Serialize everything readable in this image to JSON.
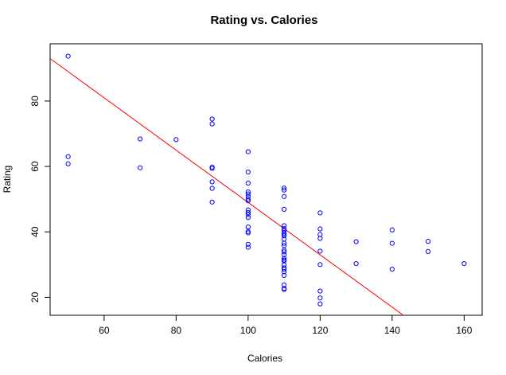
{
  "chart_data": {
    "type": "scatter",
    "title": "Rating vs. Calories",
    "xlabel": "Calories",
    "ylabel": "Rating",
    "xlim": [
      45,
      165
    ],
    "ylim": [
      14.5,
      97.5
    ],
    "xticks": [
      60,
      80,
      100,
      120,
      140,
      160
    ],
    "yticks": [
      20,
      40,
      60,
      80
    ],
    "grid": false,
    "legend": "none",
    "points": [
      [
        50,
        93.7
      ],
      [
        50,
        63.0
      ],
      [
        50,
        60.8
      ],
      [
        70,
        68.4
      ],
      [
        70,
        59.6
      ],
      [
        80,
        68.2
      ],
      [
        90,
        74.5
      ],
      [
        90,
        73.0
      ],
      [
        90,
        59.8
      ],
      [
        90,
        59.4
      ],
      [
        90,
        55.3
      ],
      [
        90,
        53.3
      ],
      [
        90,
        49.1
      ],
      [
        100,
        64.5
      ],
      [
        100,
        58.3
      ],
      [
        100,
        54.9
      ],
      [
        100,
        52.2
      ],
      [
        100,
        51.6
      ],
      [
        100,
        50.8
      ],
      [
        100,
        50.0
      ],
      [
        100,
        49.5
      ],
      [
        100,
        46.7
      ],
      [
        100,
        45.9
      ],
      [
        100,
        45.3
      ],
      [
        100,
        44.4
      ],
      [
        100,
        41.5
      ],
      [
        100,
        40.1
      ],
      [
        100,
        39.7
      ],
      [
        100,
        36.2
      ],
      [
        100,
        35.3
      ],
      [
        110,
        53.4
      ],
      [
        110,
        52.8
      ],
      [
        110,
        50.8
      ],
      [
        110,
        46.9
      ],
      [
        110,
        41.9
      ],
      [
        110,
        41.0
      ],
      [
        110,
        40.4
      ],
      [
        110,
        39.6
      ],
      [
        110,
        39.1
      ],
      [
        110,
        38.8
      ],
      [
        110,
        37.8
      ],
      [
        110,
        36.5
      ],
      [
        110,
        35.8
      ],
      [
        110,
        34.4
      ],
      [
        110,
        33.9
      ],
      [
        110,
        33.0
      ],
      [
        110,
        31.9
      ],
      [
        110,
        31.4
      ],
      [
        110,
        31.1
      ],
      [
        110,
        29.9
      ],
      [
        110,
        29.0
      ],
      [
        110,
        28.6
      ],
      [
        110,
        27.8
      ],
      [
        110,
        26.7
      ],
      [
        110,
        23.8
      ],
      [
        110,
        22.7
      ],
      [
        110,
        22.4
      ],
      [
        120,
        45.8
      ],
      [
        120,
        40.9
      ],
      [
        120,
        39.2
      ],
      [
        120,
        38.0
      ],
      [
        120,
        34.1
      ],
      [
        120,
        30.0
      ],
      [
        120,
        21.9
      ],
      [
        120,
        19.8
      ],
      [
        120,
        18.0
      ],
      [
        130,
        37.0
      ],
      [
        130,
        30.3
      ],
      [
        140,
        40.6
      ],
      [
        140,
        36.5
      ],
      [
        140,
        28.6
      ],
      [
        150,
        37.1
      ],
      [
        150,
        34.0
      ],
      [
        160,
        30.3
      ]
    ],
    "fit_line": {
      "intercept": 129.0,
      "slope": -0.8
    },
    "point_color": "#0000ff",
    "line_color": "#ff0000"
  }
}
